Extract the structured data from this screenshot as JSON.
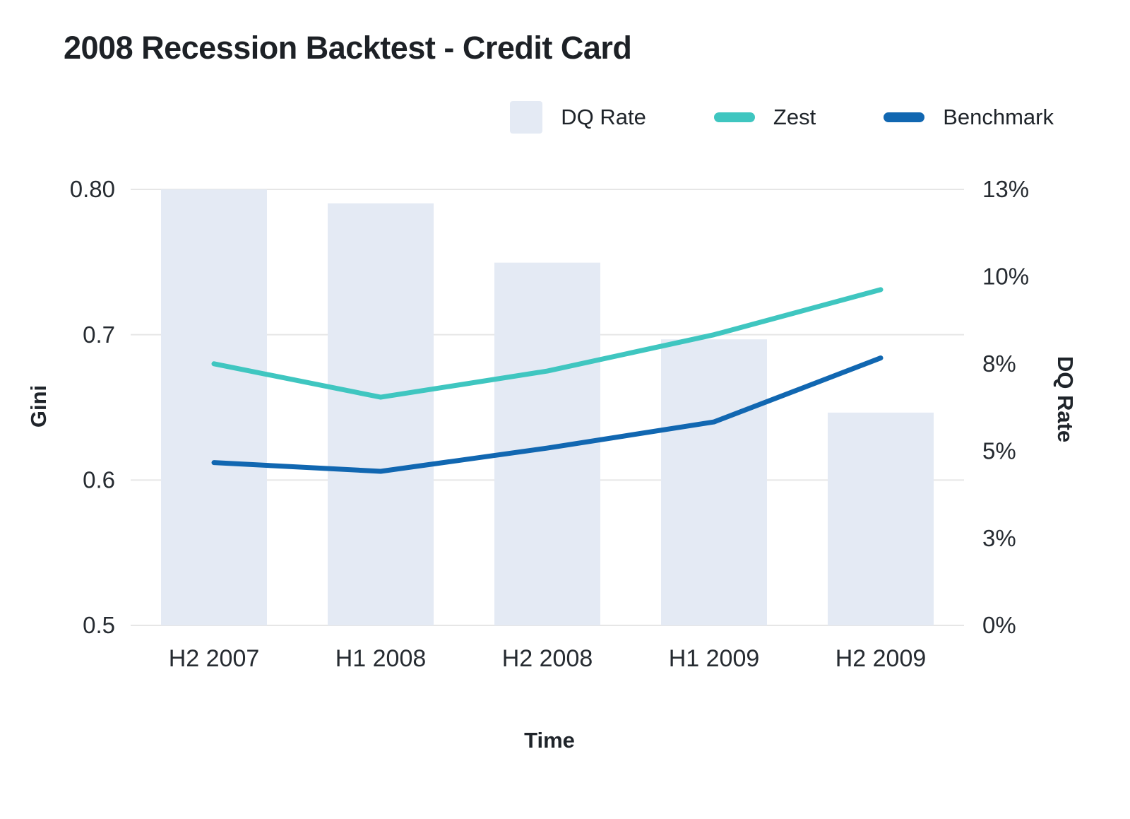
{
  "title": "2008 Recession Backtest - Credit Card",
  "colors": {
    "bar": "#e4eaf4",
    "zest": "#3fc6c0",
    "benchmark": "#1167b1",
    "grid": "#e6e6e6",
    "text": "#262b31"
  },
  "legend": {
    "items": [
      {
        "label": "DQ Rate",
        "type": "bar",
        "color": "#e4eaf4"
      },
      {
        "label": "Zest",
        "type": "line",
        "color": "#3fc6c0"
      },
      {
        "label": "Benchmark",
        "type": "line",
        "color": "#1167b1"
      }
    ]
  },
  "chart_data": {
    "type": "combo-bar-line",
    "categories": [
      "H2 2007",
      "H1 2008",
      "H2 2008",
      "H1 2009",
      "H2 2009"
    ],
    "bar_series": {
      "name": "DQ Rate",
      "axis": "right",
      "values_pct": [
        12.5,
        12.1,
        10.4,
        8.2,
        6.1
      ],
      "color": "#e4eaf4"
    },
    "line_series": [
      {
        "name": "Zest",
        "axis": "left",
        "color": "#3fc6c0",
        "values": [
          0.68,
          0.657,
          0.675,
          0.7,
          0.731
        ]
      },
      {
        "name": "Benchmark",
        "axis": "left",
        "color": "#1167b1",
        "values": [
          0.612,
          0.606,
          0.622,
          0.64,
          0.684
        ]
      }
    ],
    "left_axis": {
      "label": "Gini",
      "min": 0.5,
      "max": 0.8,
      "ticks": [
        0.5,
        0.6,
        0.7,
        0.8
      ],
      "tick_labels": [
        "0.5",
        "0.6",
        "0.7",
        "0.80"
      ]
    },
    "right_axis": {
      "label": "DQ Rate",
      "min": 0,
      "max": 12.5,
      "ticks": [
        0,
        2.5,
        5,
        7.5,
        10,
        12.5
      ],
      "tick_labels": [
        "0%",
        "3%",
        "5%",
        "8%",
        "10%",
        "13%"
      ]
    },
    "x_axis": {
      "label": "Time"
    },
    "grid": "horizontal-left-axis-only",
    "legend_position": "top-right"
  }
}
